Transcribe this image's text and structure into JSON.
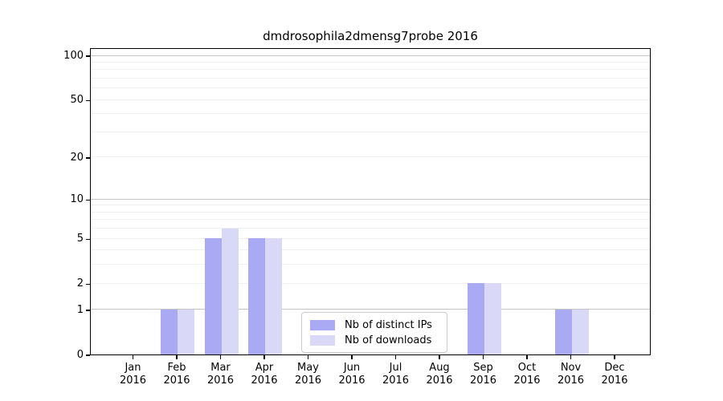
{
  "figure": {
    "title": "dmdrosophila2dmensg7probe 2016"
  },
  "chart_data": {
    "type": "bar",
    "title": "dmdrosophila2dmensg7probe 2016",
    "categories": [
      "Jan 2016",
      "Feb 2016",
      "Mar 2016",
      "Apr 2016",
      "May 2016",
      "Jun 2016",
      "Jul 2016",
      "Aug 2016",
      "Sep 2016",
      "Oct 2016",
      "Nov 2016",
      "Dec 2016"
    ],
    "x_tick_months": [
      "Jan",
      "Feb",
      "Mar",
      "Apr",
      "May",
      "Jun",
      "Jul",
      "Aug",
      "Sep",
      "Oct",
      "Nov",
      "Dec"
    ],
    "x_tick_year": "2016",
    "series": [
      {
        "name": "Nb of distinct IPs",
        "color": "#a9a9f4",
        "values": [
          0,
          1,
          5,
          5,
          0,
          0,
          0,
          0,
          2,
          0,
          1,
          0
        ]
      },
      {
        "name": "Nb of downloads",
        "color": "#d9d9f7",
        "values": [
          0,
          1,
          6,
          5,
          0,
          0,
          0,
          0,
          2,
          0,
          1,
          0
        ]
      }
    ],
    "xlabel": "",
    "ylabel": "",
    "yscale": "log1p",
    "ylim": [
      0,
      113
    ],
    "y_ticks": [
      0,
      1,
      2,
      5,
      10,
      20,
      50,
      100
    ],
    "major_gridlines": [
      1,
      10,
      100
    ],
    "minor_gridlines": [
      2,
      3,
      4,
      5,
      6,
      7,
      8,
      9,
      20,
      30,
      40,
      50,
      60,
      70,
      80,
      90
    ],
    "grid": true,
    "legend_position": "lower center"
  }
}
